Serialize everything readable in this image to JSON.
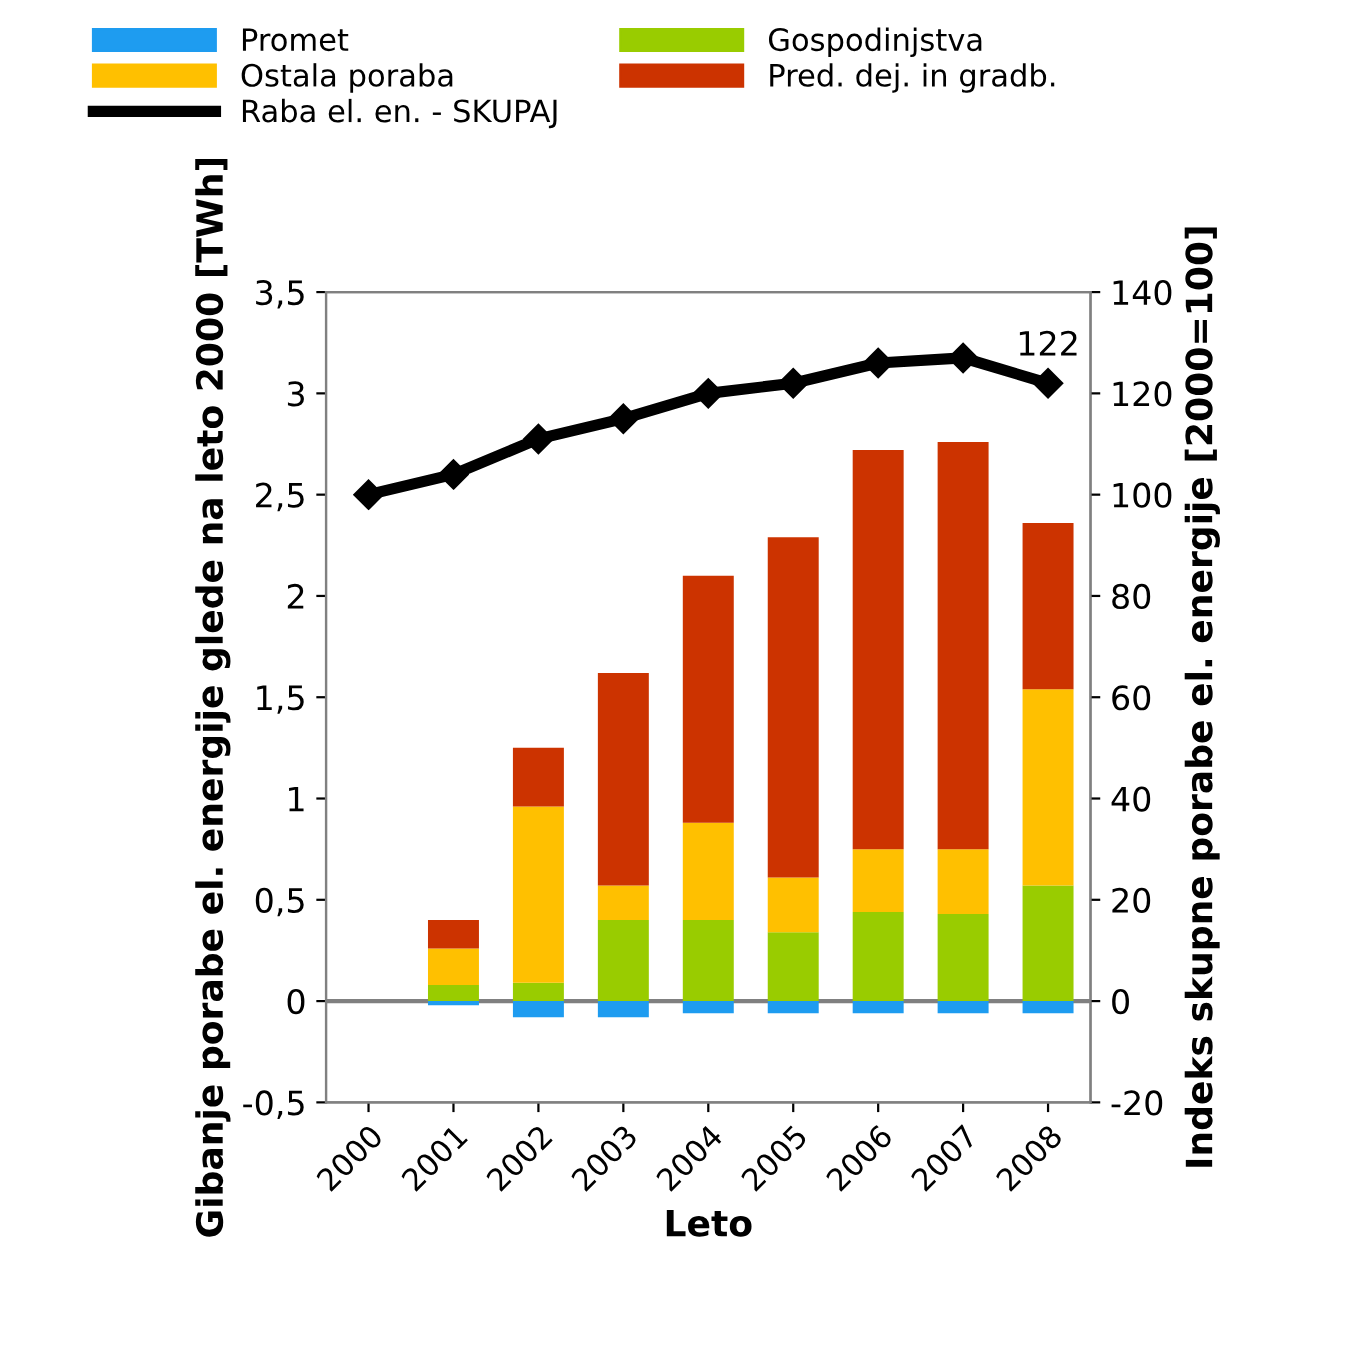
{
  "chart_data": {
    "type": "bar",
    "stacked": true,
    "xlabel": "Leto",
    "ylabel": "Gibanje porabe el. energije glede na leto 2000 [TWh]",
    "y2label": "Indeks skupne porabe el. energije [2000=100]",
    "categories": [
      "2000",
      "2001",
      "2002",
      "2003",
      "2004",
      "2005",
      "2006",
      "2007",
      "2008"
    ],
    "series": [
      {
        "name": "Promet",
        "color": "#1e9cf0",
        "values": [
          0,
          -0.02,
          -0.08,
          -0.08,
          -0.06,
          -0.06,
          -0.06,
          -0.06,
          -0.06
        ]
      },
      {
        "name": "Gospodinjstva",
        "color": "#99cc00",
        "values": [
          0,
          0.08,
          0.09,
          0.4,
          0.4,
          0.34,
          0.44,
          0.43,
          0.57
        ]
      },
      {
        "name": "Ostala poraba",
        "color": "#ffc000",
        "values": [
          0,
          0.18,
          0.87,
          0.17,
          0.48,
          0.27,
          0.31,
          0.32,
          0.97
        ]
      },
      {
        "name": "Pred. dej. in gradb.",
        "color": "#cc3300",
        "values": [
          0,
          0.14,
          0.29,
          1.05,
          1.22,
          1.68,
          1.97,
          2.01,
          0.82
        ]
      },
      {
        "name": "Raba el. en. - SKUPAJ",
        "type": "line",
        "axis": "y2",
        "color": "#000000",
        "marker": "diamond",
        "values": [
          100,
          104,
          111,
          115,
          120,
          122,
          126,
          127,
          122
        ],
        "value_labels": [
          null,
          null,
          null,
          null,
          null,
          null,
          null,
          null,
          "122"
        ]
      }
    ],
    "ylim": [
      -0.5,
      3.5
    ],
    "yticks": [
      {
        "value": -0.5,
        "label": "-0,5"
      },
      0,
      {
        "value": 0.5,
        "label": "0,5"
      },
      1,
      {
        "value": 1.5,
        "label": "1,5"
      },
      2,
      {
        "value": 2.5,
        "label": "2,5"
      },
      3,
      {
        "value": 3.5,
        "label": "3,5"
      }
    ],
    "y2lim": [
      -20,
      140
    ],
    "y2ticks": [
      -20,
      0,
      20,
      40,
      60,
      80,
      100,
      120,
      140
    ],
    "ref_lines": [
      {
        "axis": "y",
        "value": 0,
        "color": "#808080"
      }
    ],
    "legend": "top",
    "grid": false
  }
}
